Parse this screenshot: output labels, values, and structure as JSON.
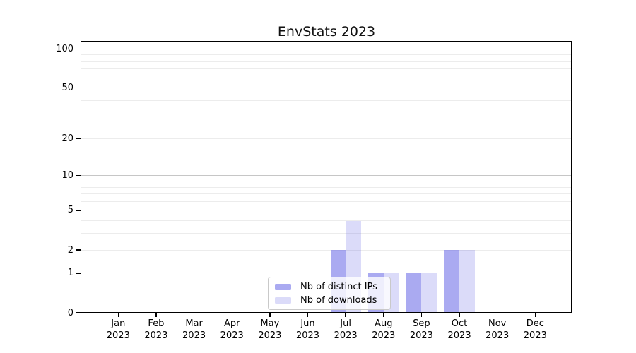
{
  "title": "EnvStats 2023",
  "colors": {
    "bar_ips": "rgba(100,100,230,0.55)",
    "bar_downloads": "rgba(100,100,230,0.23)",
    "bar_ips_hex": "#aaaaf1",
    "bar_downloads_hex": "#dbdbf9",
    "grid_decade": "#c6c6c6",
    "grid_minor": "#ececec",
    "axis": "#000000",
    "legend_border": "#c9c9c9"
  },
  "legend": {
    "items": [
      {
        "label": "Nb of distinct IPs"
      },
      {
        "label": "Nb of downloads"
      }
    ]
  },
  "chart_data": {
    "type": "bar",
    "title": "EnvStats 2023",
    "x_year": "2023",
    "months": [
      "Jan",
      "Feb",
      "Mar",
      "Apr",
      "May",
      "Jun",
      "Jul",
      "Aug",
      "Sep",
      "Oct",
      "Nov",
      "Dec"
    ],
    "categories": [
      "Jan 2023",
      "Feb 2023",
      "Mar 2023",
      "Apr 2023",
      "May 2023",
      "Jun 2023",
      "Jul 2023",
      "Aug 2023",
      "Sep 2023",
      "Oct 2023",
      "Nov 2023",
      "Dec 2023"
    ],
    "series": [
      {
        "name": "Nb of distinct IPs",
        "values": [
          0,
          0,
          0,
          0,
          0,
          0,
          2,
          1,
          1,
          2,
          0,
          0
        ]
      },
      {
        "name": "Nb of downloads",
        "values": [
          0,
          0,
          0,
          0,
          0,
          0,
          4,
          1,
          1,
          2,
          0,
          0
        ]
      }
    ],
    "yscale": "log1p",
    "ylim": [
      0,
      115
    ],
    "y_ticks": [
      0,
      1,
      2,
      5,
      10,
      20,
      50,
      100
    ],
    "y_minor_gridlines": [
      3,
      4,
      6,
      7,
      8,
      9,
      30,
      40,
      60,
      70,
      80,
      90
    ],
    "y_decade_gridlines": [
      1,
      10,
      100
    ],
    "grid": "horizontal",
    "legend_position": "lower center inside",
    "xlabel": "",
    "ylabel": ""
  }
}
